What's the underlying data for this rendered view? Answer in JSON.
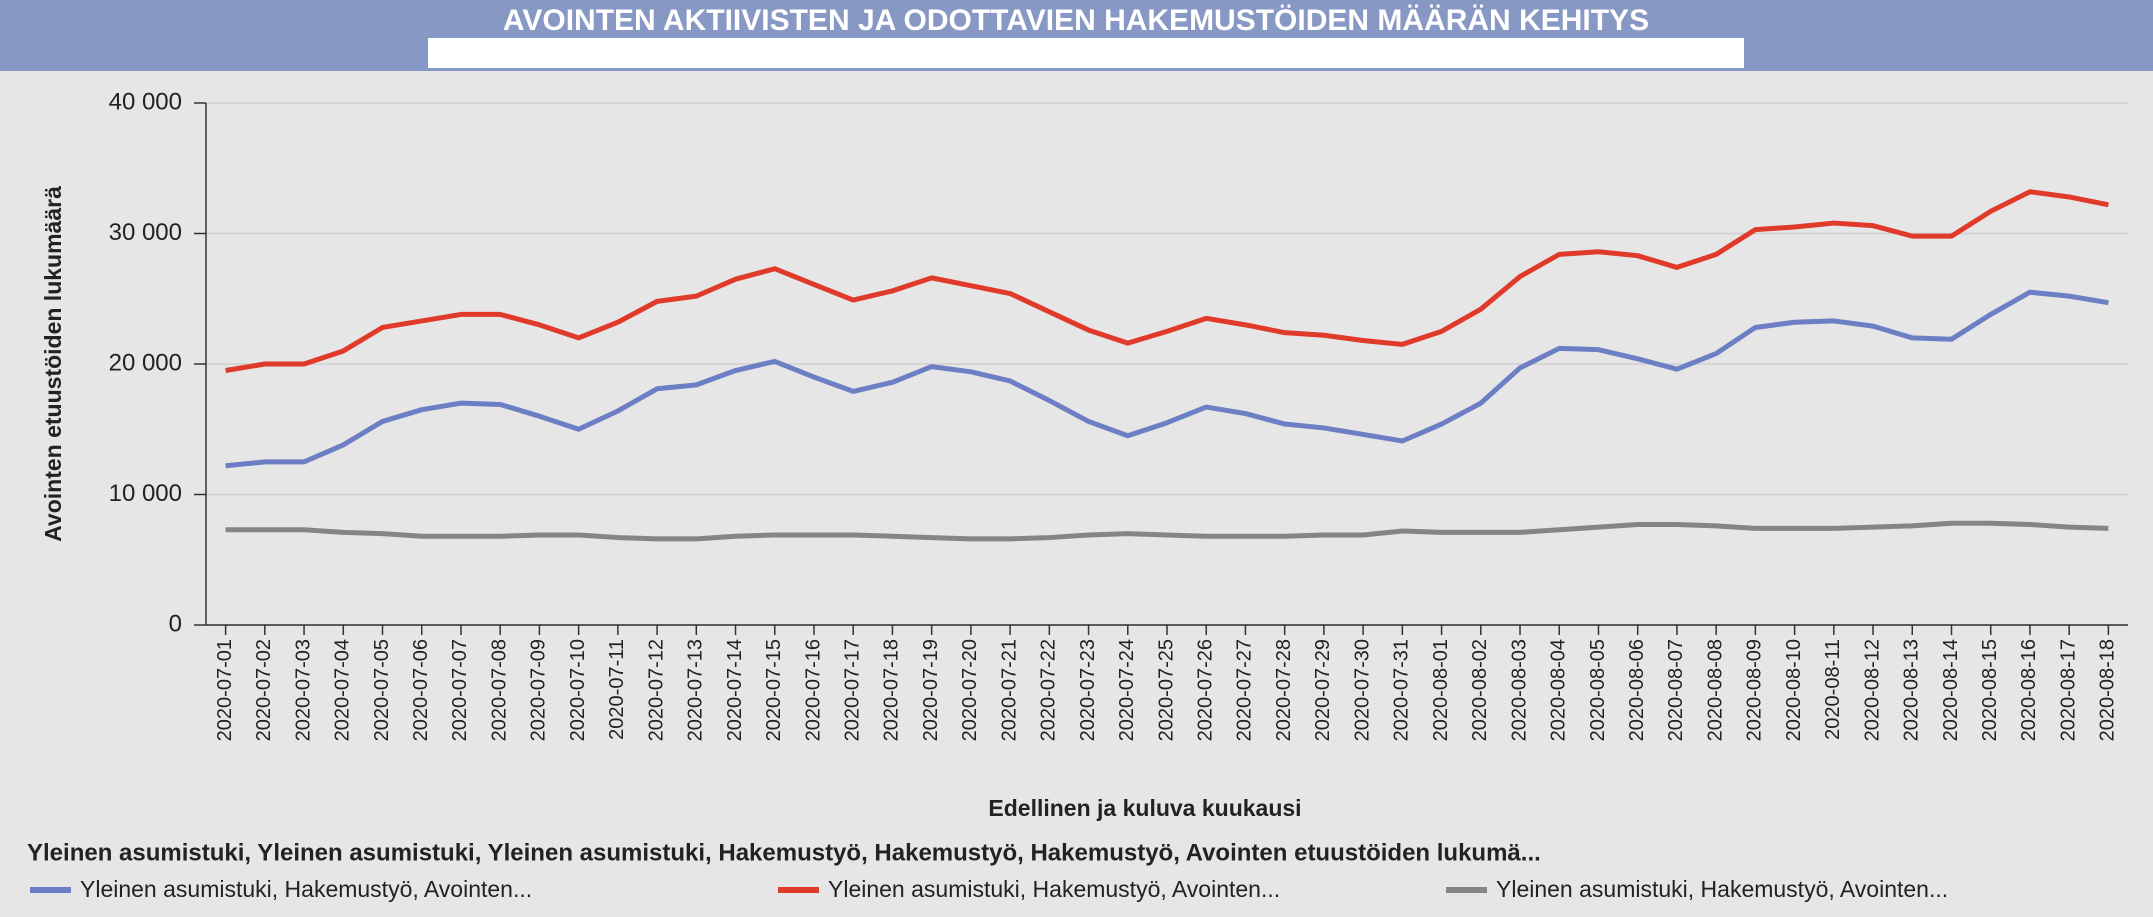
{
  "chart_data": {
    "type": "line",
    "title": "AVOINTEN AKTIIVISTEN  JA ODOTTAVIEN HAKEMUSTÖIDEN MÄÄRÄN KEHITYS",
    "x_label": "Edellinen ja kuluva kuukausi",
    "y_label": "Avointen etuustöiden lukumäärä",
    "legend_title": "Yleinen asumistuki, Yleinen asumistuki, Yleinen asumistuki, Hakemustyö, Hakemustyö, Hakemustyö, Avointen etuustöiden lukumä...",
    "categories": [
      "2020-07-01",
      "2020-07-02",
      "2020-07-03",
      "2020-07-04",
      "2020-07-05",
      "2020-07-06",
      "2020-07-07",
      "2020-07-08",
      "2020-07-09",
      "2020-07-10",
      "2020-07-11",
      "2020-07-12",
      "2020-07-13",
      "2020-07-14",
      "2020-07-15",
      "2020-07-16",
      "2020-07-17",
      "2020-07-18",
      "2020-07-19",
      "2020-07-20",
      "2020-07-21",
      "2020-07-22",
      "2020-07-23",
      "2020-07-24",
      "2020-07-25",
      "2020-07-26",
      "2020-07-27",
      "2020-07-28",
      "2020-07-29",
      "2020-07-30",
      "2020-07-31",
      "2020-08-01",
      "2020-08-02",
      "2020-08-03",
      "2020-08-04",
      "2020-08-05",
      "2020-08-06",
      "2020-08-07",
      "2020-08-08",
      "2020-08-09",
      "2020-08-10",
      "2020-08-11",
      "2020-08-12",
      "2020-08-13",
      "2020-08-14",
      "2020-08-15",
      "2020-08-16",
      "2020-08-17",
      "2020-08-18"
    ],
    "series": [
      {
        "name": "Yleinen asumistuki, Hakemustyö, Avointen...",
        "color": "#6d7fc4",
        "values": [
          12200,
          12500,
          12500,
          13800,
          15600,
          16500,
          17000,
          16900,
          16000,
          15000,
          16400,
          18100,
          18400,
          19500,
          20200,
          19000,
          17900,
          18600,
          19800,
          19400,
          18700,
          17200,
          15600,
          14500,
          15500,
          16700,
          16200,
          15400,
          15100,
          14600,
          14100,
          15400,
          17000,
          19700,
          21200,
          21100,
          20400,
          19600,
          20800,
          22800,
          23200,
          23300,
          22900,
          22000,
          21900,
          23800,
          25500,
          25200,
          24700
        ]
      },
      {
        "name": "Yleinen asumistuki, Hakemustyö, Avointen...",
        "color": "#e03a2a",
        "values": [
          19500,
          20000,
          20000,
          21000,
          22800,
          23300,
          23800,
          23800,
          23000,
          22000,
          23200,
          24800,
          25200,
          26500,
          27300,
          26100,
          24900,
          25600,
          26600,
          26000,
          25400,
          24000,
          22600,
          21600,
          22500,
          23500,
          23000,
          22400,
          22200,
          21800,
          21500,
          22500,
          24200,
          26700,
          28400,
          28600,
          28300,
          27400,
          28400,
          30300,
          30500,
          30800,
          30600,
          29800,
          29800,
          31700,
          33200,
          32800,
          32200
        ]
      },
      {
        "name": "Yleinen asumistuki, Hakemustyö, Avointen...",
        "color": "#858585",
        "values": [
          7300,
          7300,
          7300,
          7100,
          7000,
          6800,
          6800,
          6800,
          6900,
          6900,
          6700,
          6600,
          6600,
          6800,
          6900,
          6900,
          6900,
          6800,
          6700,
          6600,
          6600,
          6700,
          6900,
          7000,
          6900,
          6800,
          6800,
          6800,
          6900,
          6900,
          7200,
          7100,
          7100,
          7100,
          7300,
          7500,
          7700,
          7700,
          7600,
          7400,
          7400,
          7400,
          7500,
          7600,
          7800,
          7800,
          7700,
          7500,
          7400
        ]
      }
    ],
    "ylim": [
      0,
      40000
    ],
    "yticks": [
      0,
      {
        "value": 10000,
        "label": "10 000"
      },
      {
        "value": 20000,
        "label": "20 000"
      },
      {
        "value": 30000,
        "label": "30 000"
      },
      {
        "value": 40000,
        "label": "40 000"
      }
    ],
    "grid": true
  }
}
